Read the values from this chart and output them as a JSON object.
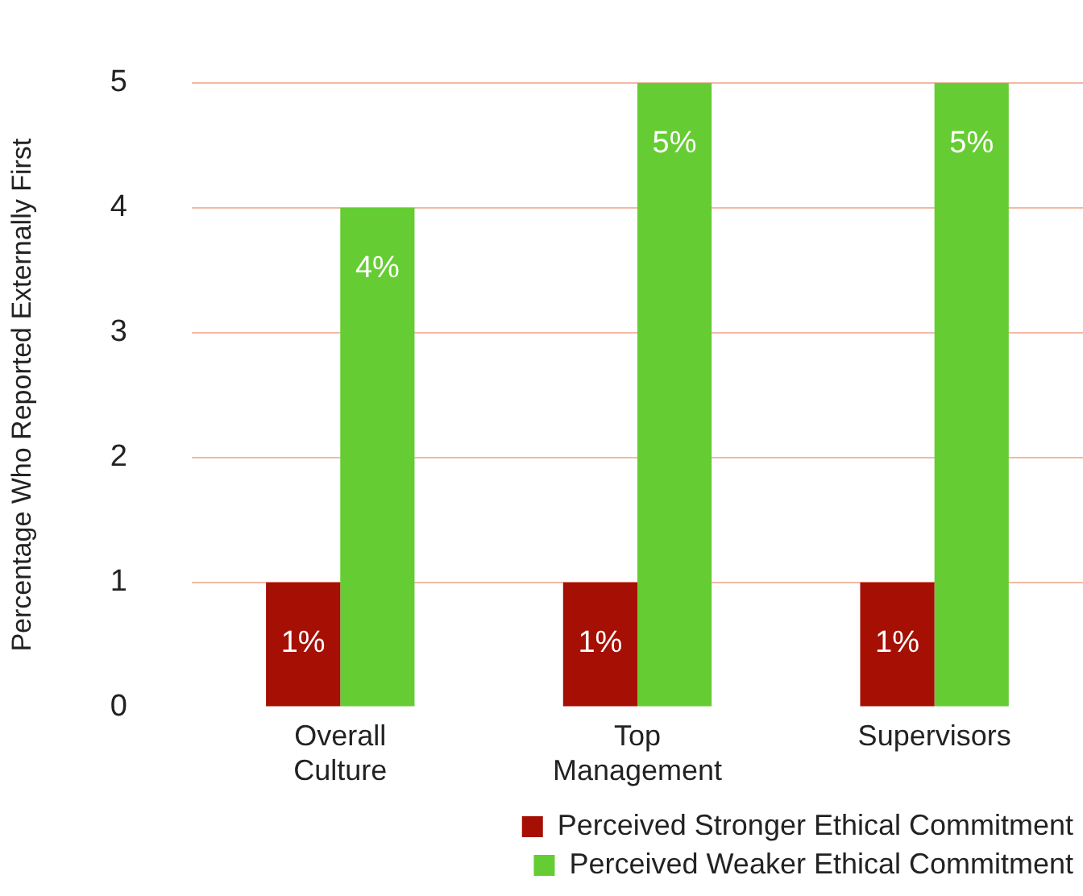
{
  "chart_data": {
    "type": "bar",
    "ylabel": "Percentage Who Reported Externally First",
    "categories": [
      "Overall Culture",
      "Top Management",
      "Supervisors"
    ],
    "series": [
      {
        "name": "Perceived Stronger Ethical Commitment",
        "color": "#a50f04",
        "values": [
          1,
          1,
          1
        ],
        "value_labels": [
          "1%",
          "1%",
          "1%"
        ]
      },
      {
        "name": "Perceived Weaker Ethical Commitment",
        "color": "#66cc33",
        "values": [
          4,
          5,
          5
        ],
        "value_labels": [
          "4%",
          "5%",
          "5%"
        ]
      }
    ],
    "ylim": [
      0,
      5
    ],
    "yticks": [
      0,
      1,
      2,
      3,
      4,
      5
    ],
    "grid": "y",
    "legend": "bottom"
  }
}
